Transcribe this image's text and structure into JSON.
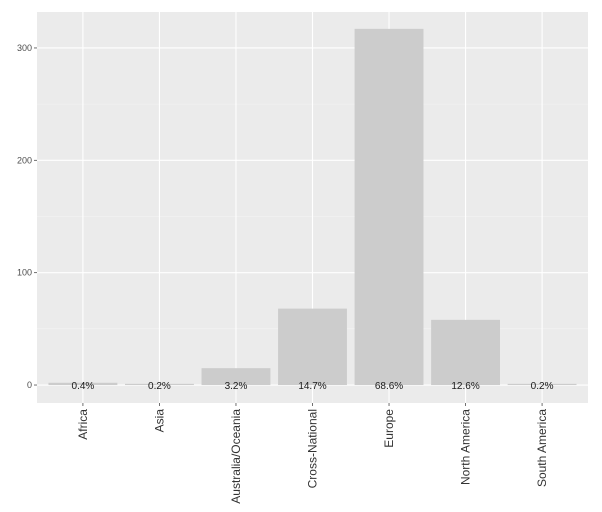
{
  "chart_data": {
    "type": "bar",
    "title": "",
    "xlabel": "",
    "ylabel": "",
    "categories": [
      "Africa",
      "Asia",
      "Australia/Oceania",
      "Cross-National",
      "Europe",
      "North America",
      "South America"
    ],
    "values": [
      2,
      1,
      15,
      68,
      317,
      58,
      1
    ],
    "data_labels": [
      "0.4%",
      "0.2%",
      "3.2%",
      "14.7%",
      "68.6%",
      "12.6%",
      "0.2%"
    ],
    "yticks": [
      0,
      100,
      200,
      300
    ],
    "ylim": [
      -16,
      332
    ],
    "grid": true,
    "legend": "none",
    "colors": {
      "panel": "#ebebeb",
      "grid_major": "#ffffff",
      "bar": "#cccccc",
      "axis": "#4d4d4d"
    }
  }
}
